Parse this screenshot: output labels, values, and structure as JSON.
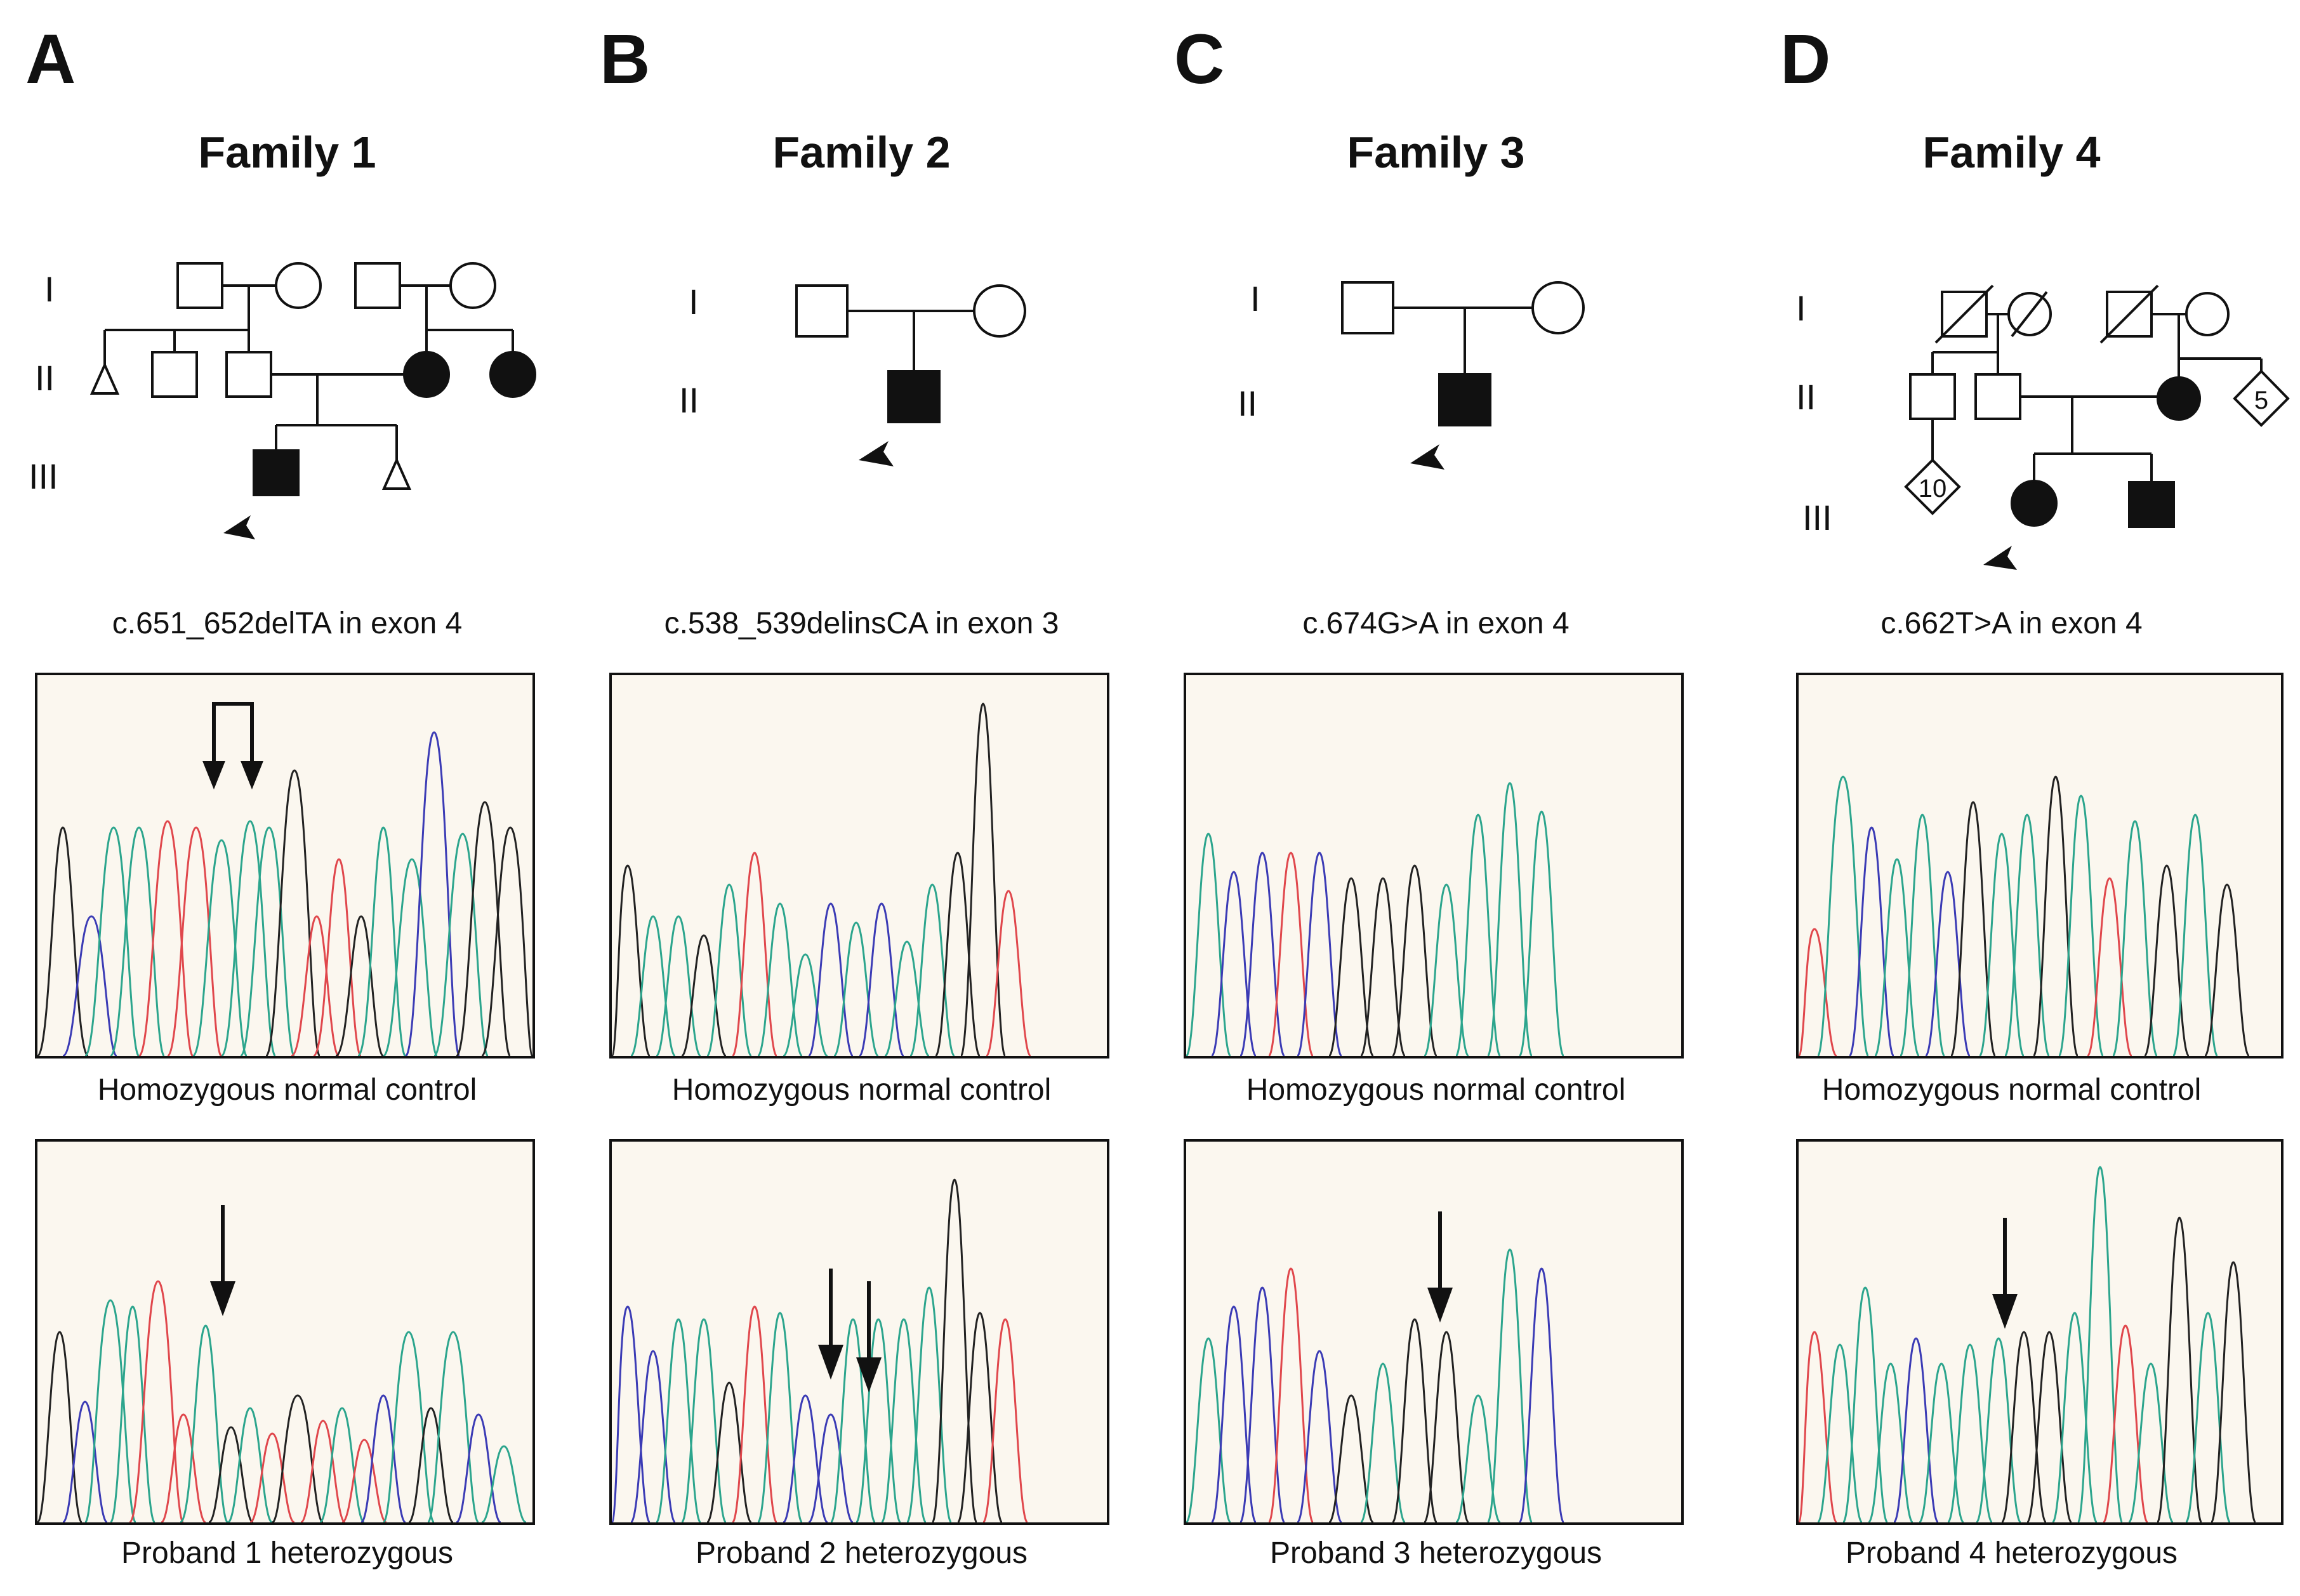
{
  "panels": [
    {
      "letter": "A",
      "family": "Family 1",
      "mutation": "c.651_652delTA in exon 4",
      "control_label": "Homozygous normal control",
      "proband_label": "Proband 1 heterozygous",
      "generations": [
        "I",
        "II",
        "III"
      ]
    },
    {
      "letter": "B",
      "family": "Family 2",
      "mutation": "c.538_539delinsCA in exon 3",
      "control_label": "Homozygous normal control",
      "proband_label": "Proband 2 heterozygous",
      "generations": [
        "I",
        "II"
      ]
    },
    {
      "letter": "C",
      "family": "Family 3",
      "mutation": "c.674G>A in exon 4",
      "control_label": "Homozygous normal control",
      "proband_label": "Proband 3 heterozygous",
      "generations": [
        "I",
        "II"
      ]
    },
    {
      "letter": "D",
      "family": "Family 4",
      "mutation": "c.662T>A in exon 4",
      "control_label": "Homozygous normal control",
      "proband_label": "Proband 4 heterozygous",
      "generations": [
        "I",
        "II",
        "III"
      ],
      "sibship_counts": [
        "5",
        "10"
      ]
    }
  ],
  "colors": {
    "A": "#2ca58d",
    "C": "#3b3bb5",
    "G": "#222222",
    "T": "#e0474c",
    "background": "#fbf7ef"
  }
}
